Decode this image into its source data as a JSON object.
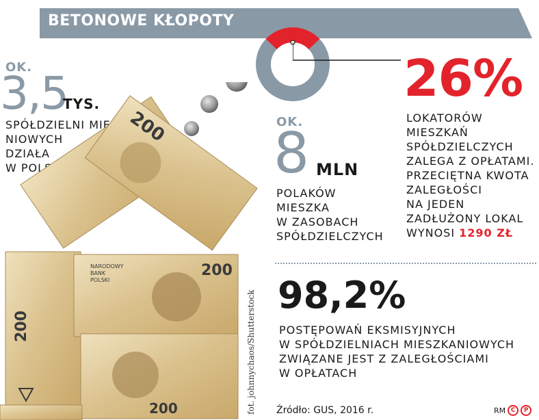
{
  "header": {
    "title": "BETONOWE KŁOPOTY"
  },
  "stat_coops": {
    "prefix": "OK.",
    "number": "3,5",
    "unit": "TYS.",
    "lines": [
      "SPÓŁDZIELNI MIESZKA-",
      "NIOWYCH",
      "DZIAŁA",
      "W POLSCE"
    ]
  },
  "stat_people": {
    "prefix": "OK.",
    "number": "8",
    "unit": "MLN",
    "lines": [
      "POLAKÓW",
      "MIESZKA",
      "W ZASOBACH",
      "SPÓŁDZIELCZYCH"
    ]
  },
  "stat_arrears": {
    "percent": "26%",
    "ring_fraction": 0.26,
    "lines": [
      "LOKATORÓW",
      "MIESZKAŃ",
      "SPÓŁDZIELCZYCH",
      "ZALEGA Z OPŁATAMI.",
      "PRZECIĘTNA KWOTA",
      "ZALEGŁOŚCI",
      "NA JEDEN",
      "ZADŁUŻONY LOKAL"
    ],
    "last_line_prefix": "WYNOSI",
    "amount": "1290 ZŁ"
  },
  "stat_evictions": {
    "percent": "98,2%",
    "lines": [
      "POSTĘPOWAŃ EKSMISYJNYCH",
      "W SPÓŁDZIELNIACH MIESZKANIOWYCH",
      "ZWIĄZANE JEST Z ZALEGŁOŚCIAMI",
      "W OPŁATACH"
    ]
  },
  "credits": {
    "photo": "fot. johnnychaos/Shutterstock",
    "source": "Źródło: GUS, 2016 r.",
    "logo": {
      "text": "RM",
      "c": "C",
      "p": "P"
    }
  },
  "colors": {
    "header_gray": "#8a99a6",
    "accent_red": "#e3232b",
    "text": "#1a1a1a"
  },
  "illustration": {
    "note_values": [
      "200",
      "200",
      "200",
      "200",
      "200"
    ],
    "bank_lines": [
      "NARODOWY",
      "BANK",
      "POLSKI"
    ]
  }
}
